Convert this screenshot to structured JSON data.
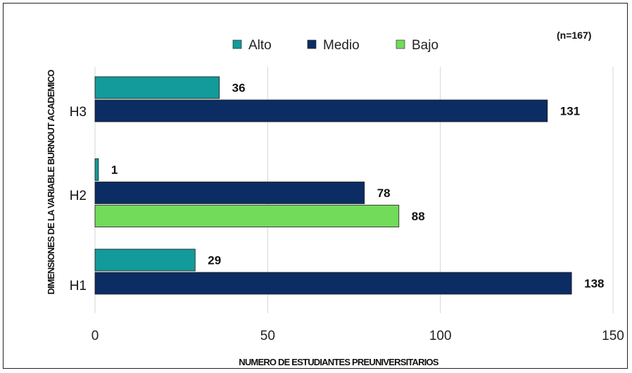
{
  "chart_data": {
    "type": "bar",
    "orientation": "horizontal",
    "note": "(n=167)",
    "xlabel": "NUMERO DE ESTUDIANTES PREUNIVERSITARIOS",
    "ylabel": "DIMENSIONES DE LA VARIABLE BURNOUT ACADEMICO",
    "xlim": [
      0,
      150
    ],
    "xticks": [
      "0",
      "50",
      "100",
      "150"
    ],
    "grid": "vertical",
    "legend_position": "top",
    "categories": [
      "H3",
      "H2",
      "H1"
    ],
    "series": [
      {
        "name": "Alto",
        "color": "#139a9a",
        "values": [
          36,
          1,
          29
        ]
      },
      {
        "name": "Medio",
        "color": "#0c2d63",
        "values": [
          131,
          78,
          138
        ]
      },
      {
        "name": "Bajo",
        "color": "#72db5a",
        "values": [
          null,
          88,
          null
        ]
      }
    ]
  }
}
